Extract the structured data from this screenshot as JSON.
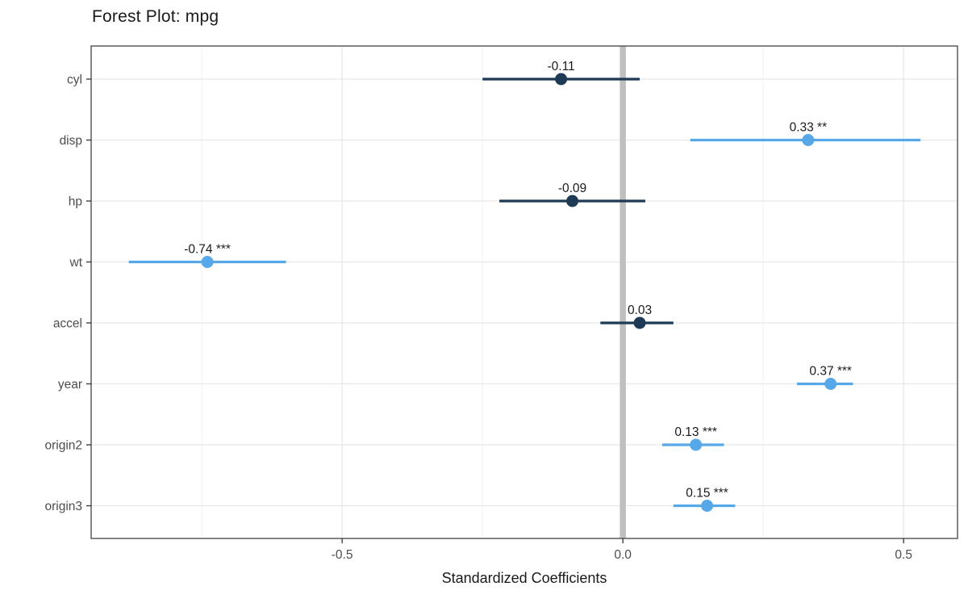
{
  "chart_data": {
    "type": "forest",
    "title": "Forest Plot: mpg",
    "xlabel": "Standardized Coefficients",
    "ylabel": "",
    "legend": "none",
    "grid": true,
    "xlim": [
      -0.947,
      0.596
    ],
    "x_major_ticks": [
      -0.5,
      0.0,
      0.5
    ],
    "x_tick_labels": [
      "-0.5",
      "0.0",
      "0.5"
    ],
    "x_minor_ticks": [
      -0.75,
      -0.25,
      0.25
    ],
    "zero_line_x": 0,
    "categories": [
      "cyl",
      "disp",
      "hp",
      "wt",
      "accel",
      "year",
      "origin2",
      "origin3"
    ],
    "rows": [
      {
        "term": "cyl",
        "estimate": -0.11,
        "ci_low": -0.25,
        "ci_high": 0.03,
        "label": "-0.11",
        "significance": "",
        "color_key": "nonsig"
      },
      {
        "term": "disp",
        "estimate": 0.33,
        "ci_low": 0.12,
        "ci_high": 0.53,
        "label": "0.33 **",
        "significance": "**",
        "color_key": "sig"
      },
      {
        "term": "hp",
        "estimate": -0.09,
        "ci_low": -0.22,
        "ci_high": 0.04,
        "label": "-0.09",
        "significance": "",
        "color_key": "nonsig"
      },
      {
        "term": "wt",
        "estimate": -0.74,
        "ci_low": -0.88,
        "ci_high": -0.6,
        "label": "-0.74 ***",
        "significance": "***",
        "color_key": "sig"
      },
      {
        "term": "accel",
        "estimate": 0.03,
        "ci_low": -0.04,
        "ci_high": 0.09,
        "label": "0.03",
        "significance": "",
        "color_key": "nonsig"
      },
      {
        "term": "year",
        "estimate": 0.37,
        "ci_low": 0.31,
        "ci_high": 0.41,
        "label": "0.37 ***",
        "significance": "***",
        "color_key": "sig"
      },
      {
        "term": "origin2",
        "estimate": 0.13,
        "ci_low": 0.07,
        "ci_high": 0.18,
        "label": "0.13 ***",
        "significance": "***",
        "color_key": "sig"
      },
      {
        "term": "origin3",
        "estimate": 0.15,
        "ci_low": 0.09,
        "ci_high": 0.2,
        "label": "0.15 ***",
        "significance": "***",
        "color_key": "sig"
      }
    ],
    "colors": {
      "sig": "#56a8e8",
      "nonsig": "#1e3a55",
      "zero_line": "#bfbfbf",
      "grid_major": "#e7e7e7",
      "grid_minor": "#f2f2f2",
      "panel_border": "#4f4f4f",
      "axis_tick": "#333333",
      "axis_text": "#4d4d4d",
      "value_text": "#1a1a1a",
      "panel_bg": "#ffffff"
    }
  }
}
